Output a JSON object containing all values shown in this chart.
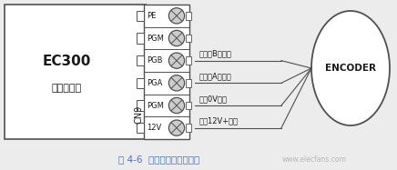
{
  "bg_color": "#ececec",
  "main_label1": "EC300",
  "main_label2": "智能整体机",
  "cn9_label": "CN9",
  "pin_labels": [
    "PE",
    "PGM",
    "PGB",
    "PGA",
    "PGM",
    "12V"
  ],
  "signal_labels": [
    "编码器B相信号",
    "编码器A相信号",
    "电源0V输出",
    "电源12V+输出"
  ],
  "encoder_label": "ENCODER",
  "caption": "图 4-6  异步主机编码器接线",
  "caption_color": "#4472c4",
  "line_color": "#505050",
  "box_color": "#ffffff",
  "text_color": "#1a1a1a",
  "watermark": "www.elecfans.com"
}
